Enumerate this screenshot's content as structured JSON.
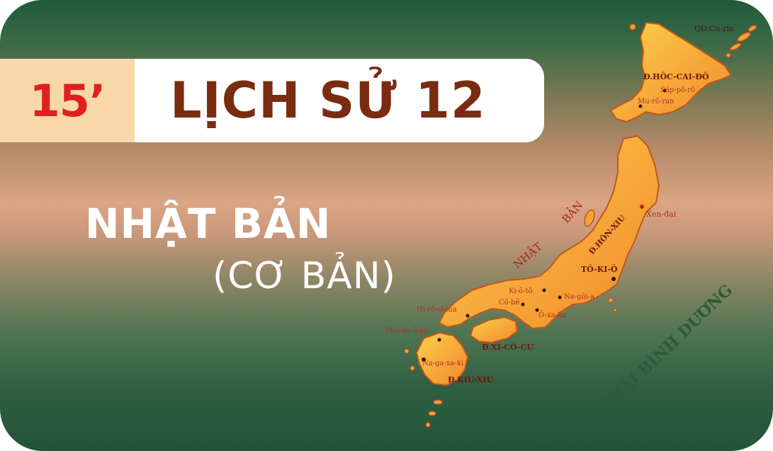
{
  "badge": {
    "label": "15’"
  },
  "course": {
    "title": "LỊCH SỬ 12"
  },
  "topic": {
    "title": "NHẬT BẢN",
    "subtitle": "(CƠ BẢN)"
  },
  "map": {
    "country_label_1": "NHẬT",
    "country_label_2": "BẢN",
    "ocean": "THÁI BÌNH DƯƠNG",
    "islands": {
      "kuril": "QĐ.Cu-rin",
      "hokkaido": "Đ.HÔC-CAI-ĐÔ",
      "honshu": "Đ.HÔN-XIU",
      "shikoku": "Đ.XI-CÔ-CƯ",
      "kyushu": "Đ.KIU-XIU"
    },
    "cities": {
      "sapporo": "Sáp-pô-rô",
      "muroran": "Mu-rô-ran",
      "sendai": "Xen-đai",
      "tokyo": "TÔ-KI-Ô",
      "kyoto": "Ki-ô-tô",
      "kobe": "Cô-bê",
      "nagoya": "Na-gôi-a",
      "osaka": "Ô-xa-ka",
      "hiroshima": "Hi-rô-si-ma",
      "fukuoka": "Phu-ku-ô-ka",
      "nagasaki": "Na-ga-xa-ki"
    },
    "colors": {
      "land": "#f5a23a",
      "land_light": "#f9c84a",
      "coast": "#c1571c",
      "city_label": "#b5301f",
      "island_label": "#6a1a0a",
      "ocean_label": "#2c5a3a"
    }
  }
}
